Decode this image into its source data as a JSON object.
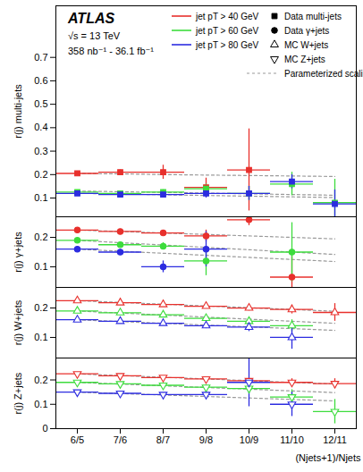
{
  "chart_data": [
    {
      "type": "scatter",
      "title": "ATLAS",
      "annotations": [
        "√s = 13 TeV",
        "358 nb⁻¹ - 36.1 fb⁻¹"
      ],
      "legend": "top-right",
      "marker_legend": [
        {
          "name": "Data multi-jets",
          "marker": "square"
        },
        {
          "name": "Data γ+jets",
          "marker": "circle"
        },
        {
          "name": "MC W+jets",
          "marker": "triangle-up-open"
        },
        {
          "name": "MC Z+jets",
          "marker": "triangle-down-open"
        }
      ],
      "scaling_legend": "Parameterized scaling",
      "y_label": "r(j) multi-jets",
      "marker": "square",
      "tick_labels": "y",
      "categories": [
        "6/5",
        "7/6",
        "8/7",
        "9/8",
        "10/9",
        "11/10",
        "12/11"
      ],
      "ylim": [
        0.02,
        0.92
      ],
      "yticks": [
        0.1,
        0.2,
        0.3,
        0.4,
        0.5,
        0.6,
        0.7
      ],
      "series": [
        {
          "name": "jet pT > 40 GeV",
          "color": "#e8302c",
          "values": [
            0.205,
            0.21,
            0.21,
            0.145,
            0.22,
            null,
            null
          ],
          "errors": [
            0.007,
            0.01,
            0.03,
            0.04,
            0.175,
            null,
            null
          ],
          "scaling": [
            0.205,
            0.203,
            0.2,
            0.198,
            0.196,
            0.194,
            0.192
          ]
        },
        {
          "name": "jet pT > 60 GeV",
          "color": "#3ddc3d",
          "values": [
            0.125,
            0.12,
            0.125,
            0.14,
            0.12,
            0.16,
            0.08
          ],
          "errors": [
            0.004,
            0.006,
            0.01,
            0.02,
            0.03,
            0.05,
            0.1
          ],
          "scaling": [
            0.13,
            0.127,
            0.124,
            0.121,
            0.118,
            0.115,
            0.112
          ]
        },
        {
          "name": "jet pT > 80 GeV",
          "color": "#2c2ce0",
          "values": [
            0.12,
            0.115,
            0.115,
            0.12,
            0.12,
            0.17,
            0.075
          ],
          "errors": [
            0.004,
            0.006,
            0.01,
            0.02,
            0.03,
            0.03,
            0.06
          ],
          "scaling": [
            0.12,
            0.117,
            0.114,
            0.111,
            0.108,
            0.105,
            0.102
          ]
        }
      ]
    },
    {
      "type": "scatter",
      "y_label": "r(j) γ+jets",
      "marker": "circle",
      "tick_labels": "y",
      "categories": [
        "6/5",
        "7/6",
        "8/7",
        "9/8",
        "10/9",
        "11/10",
        "12/11"
      ],
      "ylim": [
        0.03,
        0.27
      ],
      "yticks": [
        0.1,
        0.2
      ],
      "series": [
        {
          "color": "#e8302c",
          "values": [
            0.225,
            0.22,
            0.215,
            0.205,
            0.26,
            0.065,
            null
          ],
          "errors": [
            0.005,
            0.006,
            0.008,
            0.02,
            0.02,
            0.07,
            null
          ],
          "scaling": [
            0.225,
            0.22,
            0.215,
            0.21,
            0.205,
            0.2,
            0.195
          ]
        },
        {
          "color": "#3ddc3d",
          "values": [
            0.19,
            0.175,
            0.17,
            0.12,
            null,
            0.15,
            null
          ],
          "errors": [
            0.006,
            0.008,
            0.012,
            0.05,
            null,
            0.1,
            null
          ],
          "scaling": [
            0.19,
            0.182,
            0.174,
            0.166,
            0.158,
            0.15,
            0.142
          ]
        },
        {
          "color": "#2c2ce0",
          "values": [
            0.16,
            0.15,
            0.1,
            0.16,
            null,
            null,
            null
          ],
          "errors": [
            0.006,
            0.008,
            0.02,
            0.06,
            null,
            null,
            null
          ],
          "scaling": [
            0.16,
            0.153,
            0.146,
            0.139,
            0.132,
            0.125,
            0.118
          ]
        }
      ]
    },
    {
      "type": "scatter",
      "y_label": "r(j) W+jets",
      "marker": "triangle-up-open",
      "tick_labels": "y",
      "categories": [
        "6/5",
        "7/6",
        "8/7",
        "9/8",
        "10/9",
        "11/10",
        "12/11"
      ],
      "ylim": [
        0.03,
        0.27
      ],
      "yticks": [
        0.1,
        0.2
      ],
      "series": [
        {
          "color": "#e8302c",
          "values": [
            0.225,
            0.218,
            0.212,
            0.206,
            0.2,
            0.195,
            0.185
          ],
          "errors": [
            0.003,
            0.003,
            0.004,
            0.006,
            0.01,
            0.015,
            0.03
          ],
          "scaling": [
            0.225,
            0.219,
            0.213,
            0.207,
            0.201,
            0.195,
            0.189
          ]
        },
        {
          "color": "#3ddc3d",
          "values": [
            0.19,
            0.184,
            0.177,
            0.165,
            0.155,
            0.14,
            null
          ],
          "errors": [
            0.003,
            0.004,
            0.005,
            0.008,
            0.012,
            0.02,
            null
          ],
          "scaling": [
            0.19,
            0.183,
            0.176,
            0.169,
            0.162,
            0.155,
            0.148
          ]
        },
        {
          "color": "#2c2ce0",
          "values": [
            0.16,
            0.155,
            0.148,
            0.14,
            0.135,
            0.1,
            null
          ],
          "errors": [
            0.003,
            0.004,
            0.006,
            0.01,
            0.015,
            0.04,
            null
          ],
          "scaling": [
            0.16,
            0.154,
            0.148,
            0.142,
            0.136,
            0.13,
            0.124
          ]
        }
      ]
    },
    {
      "type": "scatter",
      "y_label": "r(j) Z+jets",
      "marker": "triangle-down-open",
      "x_label": "(Njets+1)/Njets",
      "categories": [
        "6/5",
        "7/6",
        "8/7",
        "9/8",
        "10/9",
        "11/10",
        "12/11"
      ],
      "ylim": [
        0,
        0.29
      ],
      "yticks": [
        0,
        0.1,
        0.2
      ],
      "series": [
        {
          "color": "#e8302c",
          "values": [
            0.225,
            0.217,
            0.21,
            0.204,
            0.197,
            0.19,
            0.185
          ],
          "errors": [
            0.004,
            0.004,
            0.005,
            0.007,
            0.01,
            0.015,
            0.02
          ],
          "scaling": [
            0.225,
            0.218,
            0.211,
            0.204,
            0.197,
            0.19,
            0.183
          ]
        },
        {
          "color": "#3ddc3d",
          "values": [
            0.19,
            0.184,
            0.178,
            0.17,
            0.165,
            0.13,
            0.07
          ],
          "errors": [
            0.004,
            0.005,
            0.006,
            0.01,
            0.015,
            0.03,
            0.05
          ],
          "scaling": [
            0.19,
            0.183,
            0.176,
            0.169,
            0.162,
            0.155,
            0.148
          ]
        },
        {
          "color": "#2c2ce0",
          "values": [
            0.15,
            0.145,
            0.14,
            0.14,
            0.19,
            0.1,
            null
          ],
          "errors": [
            0.004,
            0.005,
            0.008,
            0.012,
            0.1,
            0.05,
            null
          ],
          "scaling": [
            0.15,
            0.144,
            0.138,
            0.132,
            0.126,
            0.12,
            0.114
          ]
        }
      ]
    }
  ]
}
